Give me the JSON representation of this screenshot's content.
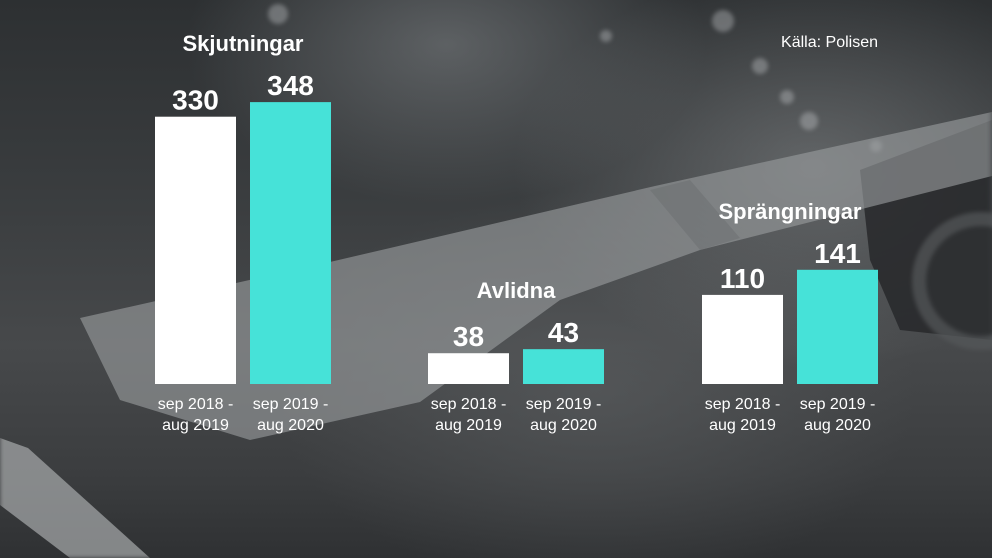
{
  "source": "Källa: Polisen",
  "colors": {
    "background": "#3b3e40",
    "bar_first_period": "#ffffff",
    "bar_second_period": "#46e2d8",
    "text": "#ffffff"
  },
  "chart_data": [
    {
      "type": "bar",
      "title": "Skjutningar",
      "categories": [
        "sep 2018 - aug 2019",
        "sep 2019 - aug 2020"
      ],
      "values": [
        330,
        348
      ],
      "data_labels": true,
      "axes": "none",
      "grid": false,
      "legend": "none"
    },
    {
      "type": "bar",
      "title": "Avlidna",
      "categories": [
        "sep 2018 - aug 2019",
        "sep 2019 - aug 2020"
      ],
      "values": [
        38,
        43
      ],
      "data_labels": true,
      "axes": "none",
      "grid": false,
      "legend": "none"
    },
    {
      "type": "bar",
      "title": "Sprängningar",
      "categories": [
        "sep 2018 - aug 2019",
        "sep 2019 - aug 2020"
      ],
      "values": [
        110,
        141
      ],
      "data_labels": true,
      "axes": "none",
      "grid": false,
      "legend": "none"
    }
  ]
}
